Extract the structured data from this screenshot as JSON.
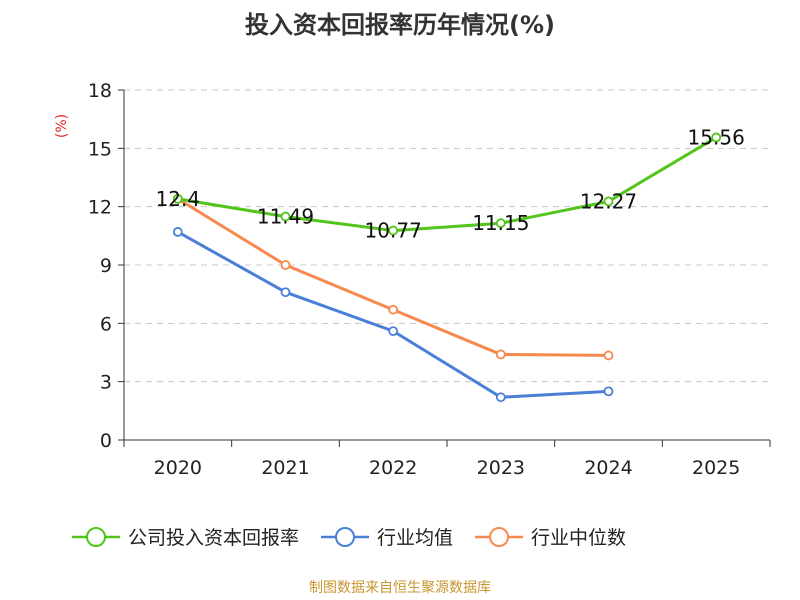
{
  "chart_data": {
    "type": "line",
    "title": "投入资本回报率历年情况(%)",
    "ylabel": "(%)",
    "xlabel": "",
    "categories": [
      "2020",
      "2021",
      "2022",
      "2023",
      "2024",
      "2025"
    ],
    "ylim": [
      0,
      18
    ],
    "yticks": [
      0,
      3,
      6,
      9,
      12,
      15,
      18
    ],
    "grid": true,
    "legend_position": "bottom",
    "series": [
      {
        "name": "公司投入资本回报率",
        "color": "#52c41a",
        "values": [
          12.4,
          11.49,
          10.77,
          11.15,
          12.27,
          15.56
        ],
        "labels": [
          "12.4",
          "11.49",
          "10.77",
          "11.15",
          "12.27",
          "15.56"
        ]
      },
      {
        "name": "行业均值",
        "color": "#4a7fd8",
        "values": [
          10.7,
          7.6,
          5.6,
          2.2,
          2.5,
          null
        ]
      },
      {
        "name": "行业中位数",
        "color": "#f7894f",
        "values": [
          12.4,
          9.0,
          6.7,
          4.4,
          4.35,
          null
        ]
      }
    ],
    "source": "制图数据来自恒生聚源数据库"
  }
}
